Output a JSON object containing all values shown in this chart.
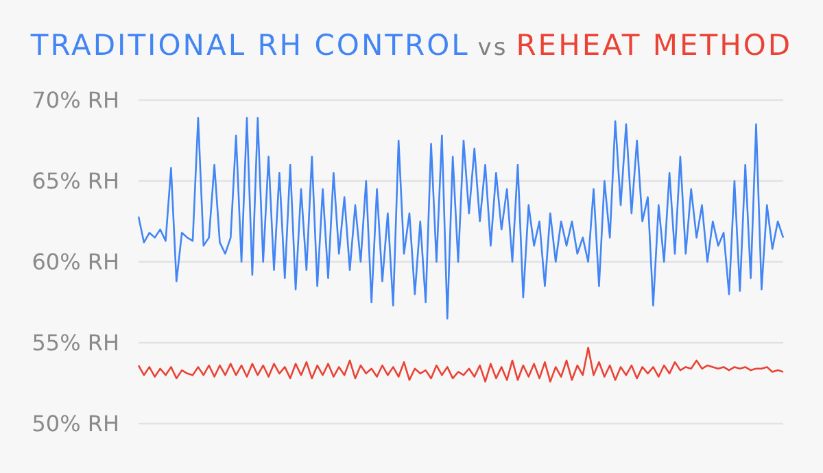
{
  "chart_data": {
    "type": "line",
    "title": "vs",
    "legend": "top",
    "grid": "y",
    "tick_labels": "y",
    "categories": [
      null,
      null,
      null,
      null,
      null,
      null,
      null,
      null,
      null,
      null,
      null,
      null,
      null,
      null,
      null,
      null,
      null,
      null,
      null,
      null,
      null,
      null,
      null,
      null,
      null,
      null,
      null,
      null,
      null,
      null,
      null,
      null,
      null,
      null,
      null,
      null,
      null,
      null,
      null,
      null,
      null,
      null,
      null,
      null,
      null,
      null,
      null,
      null,
      null,
      null,
      null,
      null,
      null,
      null,
      null,
      null,
      null,
      null,
      null,
      null,
      null,
      null,
      null,
      null,
      null,
      null,
      null,
      null,
      null,
      null,
      null,
      null,
      null,
      null,
      null,
      null,
      null,
      null,
      null,
      null,
      null,
      null,
      null,
      null,
      null,
      null,
      null,
      null,
      null,
      null,
      null,
      null,
      null,
      null,
      null,
      null,
      null,
      null,
      null,
      null,
      null,
      null,
      null,
      null,
      null,
      null,
      null,
      null,
      null,
      null,
      null,
      null,
      null,
      null,
      null,
      null,
      null,
      null,
      null,
      null
    ],
    "ylim": [
      50,
      70
    ],
    "yticks": [
      {
        "value": 50,
        "label": "50% RH"
      },
      {
        "value": 55,
        "label": "55% RH"
      },
      {
        "value": 60,
        "label": "60% RH"
      },
      {
        "value": 65,
        "label": "65% RH"
      },
      {
        "value": 70,
        "label": "70% RH"
      }
    ],
    "series": [
      {
        "name": "TRADITIONAL RH CONTROL",
        "color": "#4285f4",
        "values": [
          62.8,
          61.2,
          61.8,
          61.5,
          62.0,
          61.3,
          65.8,
          58.8,
          61.8,
          61.5,
          61.3,
          68.9,
          61.0,
          61.5,
          66.0,
          61.2,
          60.5,
          61.5,
          67.8,
          60.0,
          68.9,
          59.2,
          68.9,
          60.0,
          66.5,
          59.5,
          65.5,
          59.0,
          66.0,
          58.3,
          64.5,
          59.5,
          66.5,
          58.5,
          64.5,
          59.0,
          65.5,
          60.5,
          64.0,
          59.5,
          63.5,
          60.0,
          65.0,
          57.5,
          64.5,
          58.8,
          63.0,
          57.3,
          67.5,
          60.5,
          63.0,
          58.0,
          62.5,
          57.5,
          67.3,
          60.0,
          67.8,
          56.5,
          66.5,
          60.0,
          67.5,
          63.0,
          67.0,
          62.5,
          66.0,
          61.0,
          65.5,
          62.0,
          64.5,
          60.0,
          66.0,
          57.8,
          63.5,
          61.0,
          62.5,
          58.5,
          63.0,
          60.0,
          62.5,
          61.0,
          62.5,
          60.5,
          61.5,
          60.0,
          64.5,
          58.5,
          65.0,
          61.5,
          68.7,
          63.5,
          68.5,
          63.0,
          67.5,
          62.5,
          64.0,
          57.3,
          63.5,
          60.0,
          65.5,
          60.5,
          66.5,
          60.5,
          64.5,
          61.5,
          63.5,
          60.0,
          62.5,
          61.0,
          61.8,
          58.0,
          65.0,
          58.2,
          66.0,
          59.0,
          68.5,
          58.3,
          63.5,
          60.8,
          62.5,
          61.5
        ]
      },
      {
        "name": "REHEAT METHOD",
        "color": "#ea4335",
        "values": [
          53.6,
          53.0,
          53.5,
          52.9,
          53.4,
          53.0,
          53.5,
          52.8,
          53.3,
          53.1,
          53.0,
          53.5,
          53.0,
          53.6,
          52.9,
          53.6,
          53.0,
          53.7,
          53.0,
          53.6,
          52.9,
          53.7,
          53.0,
          53.6,
          52.9,
          53.7,
          53.1,
          53.5,
          52.8,
          53.7,
          53.0,
          53.8,
          52.8,
          53.6,
          53.0,
          53.7,
          52.9,
          53.5,
          53.0,
          53.9,
          52.8,
          53.6,
          53.1,
          53.4,
          52.9,
          53.6,
          53.0,
          53.5,
          52.9,
          53.8,
          52.7,
          53.4,
          53.1,
          53.3,
          52.8,
          53.6,
          53.0,
          53.5,
          52.8,
          53.2,
          53.0,
          53.4,
          52.9,
          53.6,
          52.6,
          53.7,
          52.8,
          53.5,
          52.7,
          53.9,
          52.7,
          53.6,
          52.9,
          53.7,
          52.8,
          53.8,
          52.6,
          53.5,
          52.9,
          53.9,
          52.7,
          53.6,
          53.0,
          54.7,
          53.0,
          53.8,
          52.9,
          53.6,
          52.7,
          53.5,
          53.0,
          53.6,
          52.8,
          53.5,
          53.1,
          53.5,
          52.9,
          53.6,
          53.1,
          53.8,
          53.3,
          53.5,
          53.4,
          53.9,
          53.4,
          53.6,
          53.5,
          53.4,
          53.5,
          53.3,
          53.5,
          53.4,
          53.5,
          53.3,
          53.4,
          53.4,
          53.5,
          53.2,
          53.3,
          53.2
        ]
      }
    ]
  }
}
